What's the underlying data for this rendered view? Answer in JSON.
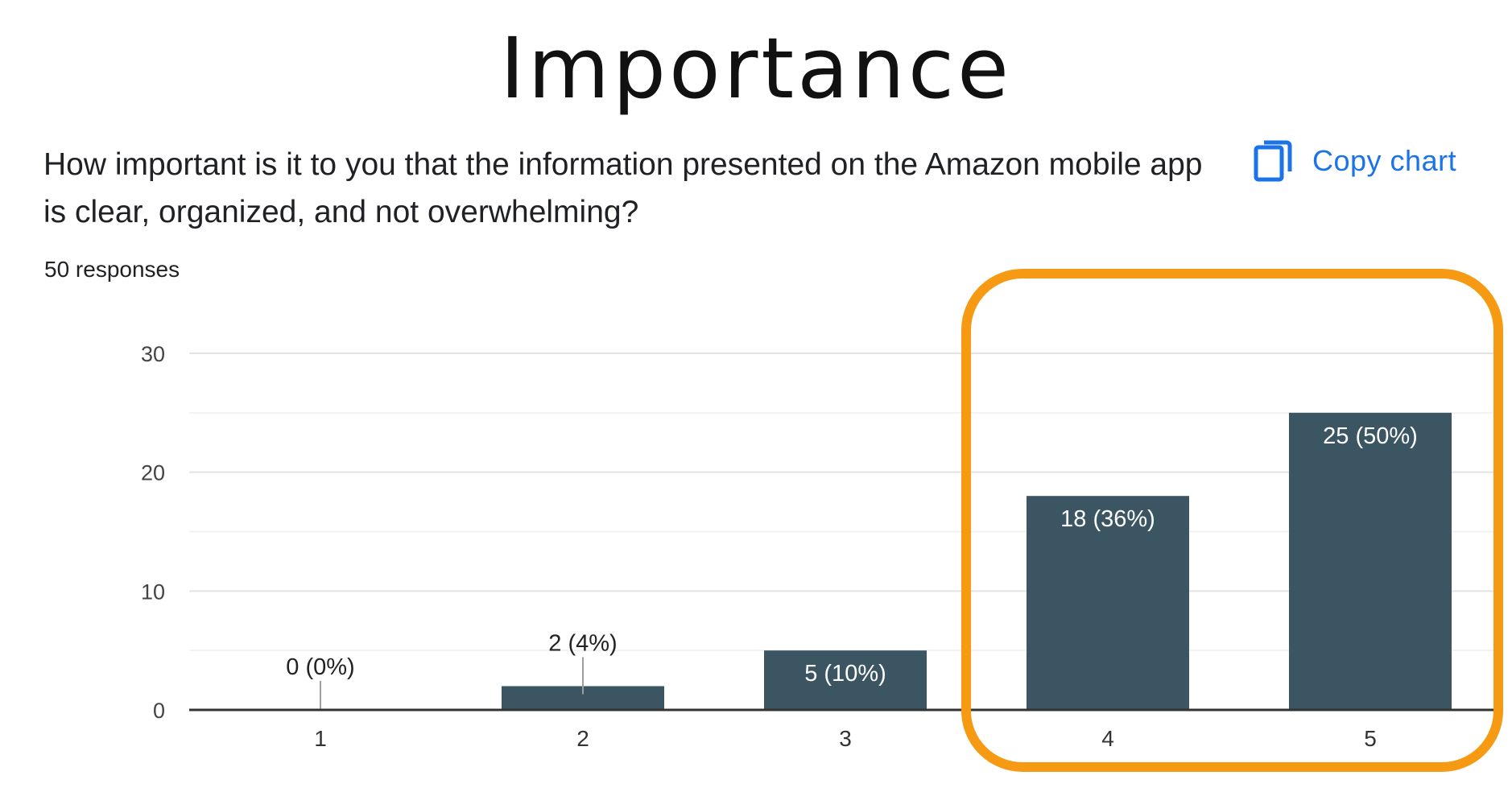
{
  "slide": {
    "title": "Importance"
  },
  "form": {
    "question": "How important is it to you that the information presented on the Amazon mobile app is clear, organized, and not overwhelming?",
    "responses": "50 responses",
    "copy_chart_label": "Copy chart"
  },
  "icons": {
    "copy": "copy-icon"
  },
  "colors": {
    "bar": "#3b5563",
    "highlight": "#f59a12",
    "link": "#1a73e8",
    "text": "#202124"
  },
  "chart_data": {
    "type": "bar",
    "categories": [
      "1",
      "2",
      "3",
      "4",
      "5"
    ],
    "values": [
      0,
      2,
      5,
      18,
      25
    ],
    "data_labels": [
      "0 (0%)",
      "2 (4%)",
      "5 (10%)",
      "18 (36%)",
      "25 (50%)"
    ],
    "ylim": [
      0,
      30
    ],
    "yticks": [
      0,
      10,
      20,
      30
    ],
    "grid": true,
    "highlighted_categories": [
      "4",
      "5"
    ]
  }
}
